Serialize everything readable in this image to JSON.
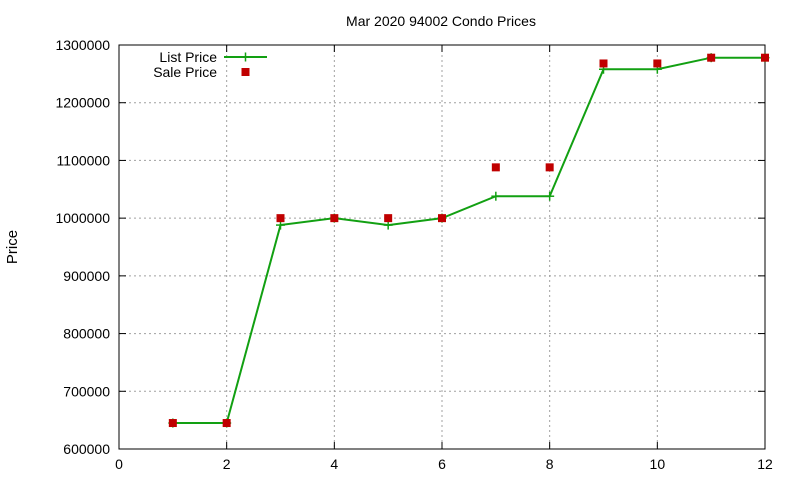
{
  "chart_data": {
    "type": "line",
    "title": "Mar 2020 94002 Condo Prices",
    "xlabel": "",
    "ylabel": "Price",
    "xlim": [
      0,
      12
    ],
    "ylim": [
      600000,
      1300000
    ],
    "xticks": [
      0,
      2,
      4,
      6,
      8,
      10,
      12
    ],
    "yticks": [
      600000,
      700000,
      800000,
      900000,
      1000000,
      1100000,
      1200000,
      1300000
    ],
    "grid": true,
    "legend_position": "top-left",
    "series": [
      {
        "name": "List Price",
        "style": "line-with-plus-markers",
        "color": "#12a012",
        "x": [
          1,
          2,
          3,
          4,
          5,
          6,
          7,
          8,
          9,
          10,
          11,
          12
        ],
        "y": [
          645000,
          645000,
          988000,
          1000000,
          988000,
          1000000,
          1038000,
          1038000,
          1258000,
          1258000,
          1278000,
          1278000
        ]
      },
      {
        "name": "Sale Price",
        "style": "square-markers",
        "color": "#c00000",
        "x": [
          1,
          2,
          3,
          4,
          5,
          6,
          7,
          8,
          9,
          10,
          11,
          12
        ],
        "y": [
          645000,
          645000,
          1000000,
          1000000,
          1000000,
          1000000,
          1088000,
          1088000,
          1268000,
          1268000,
          1278000,
          1278000
        ]
      }
    ]
  }
}
